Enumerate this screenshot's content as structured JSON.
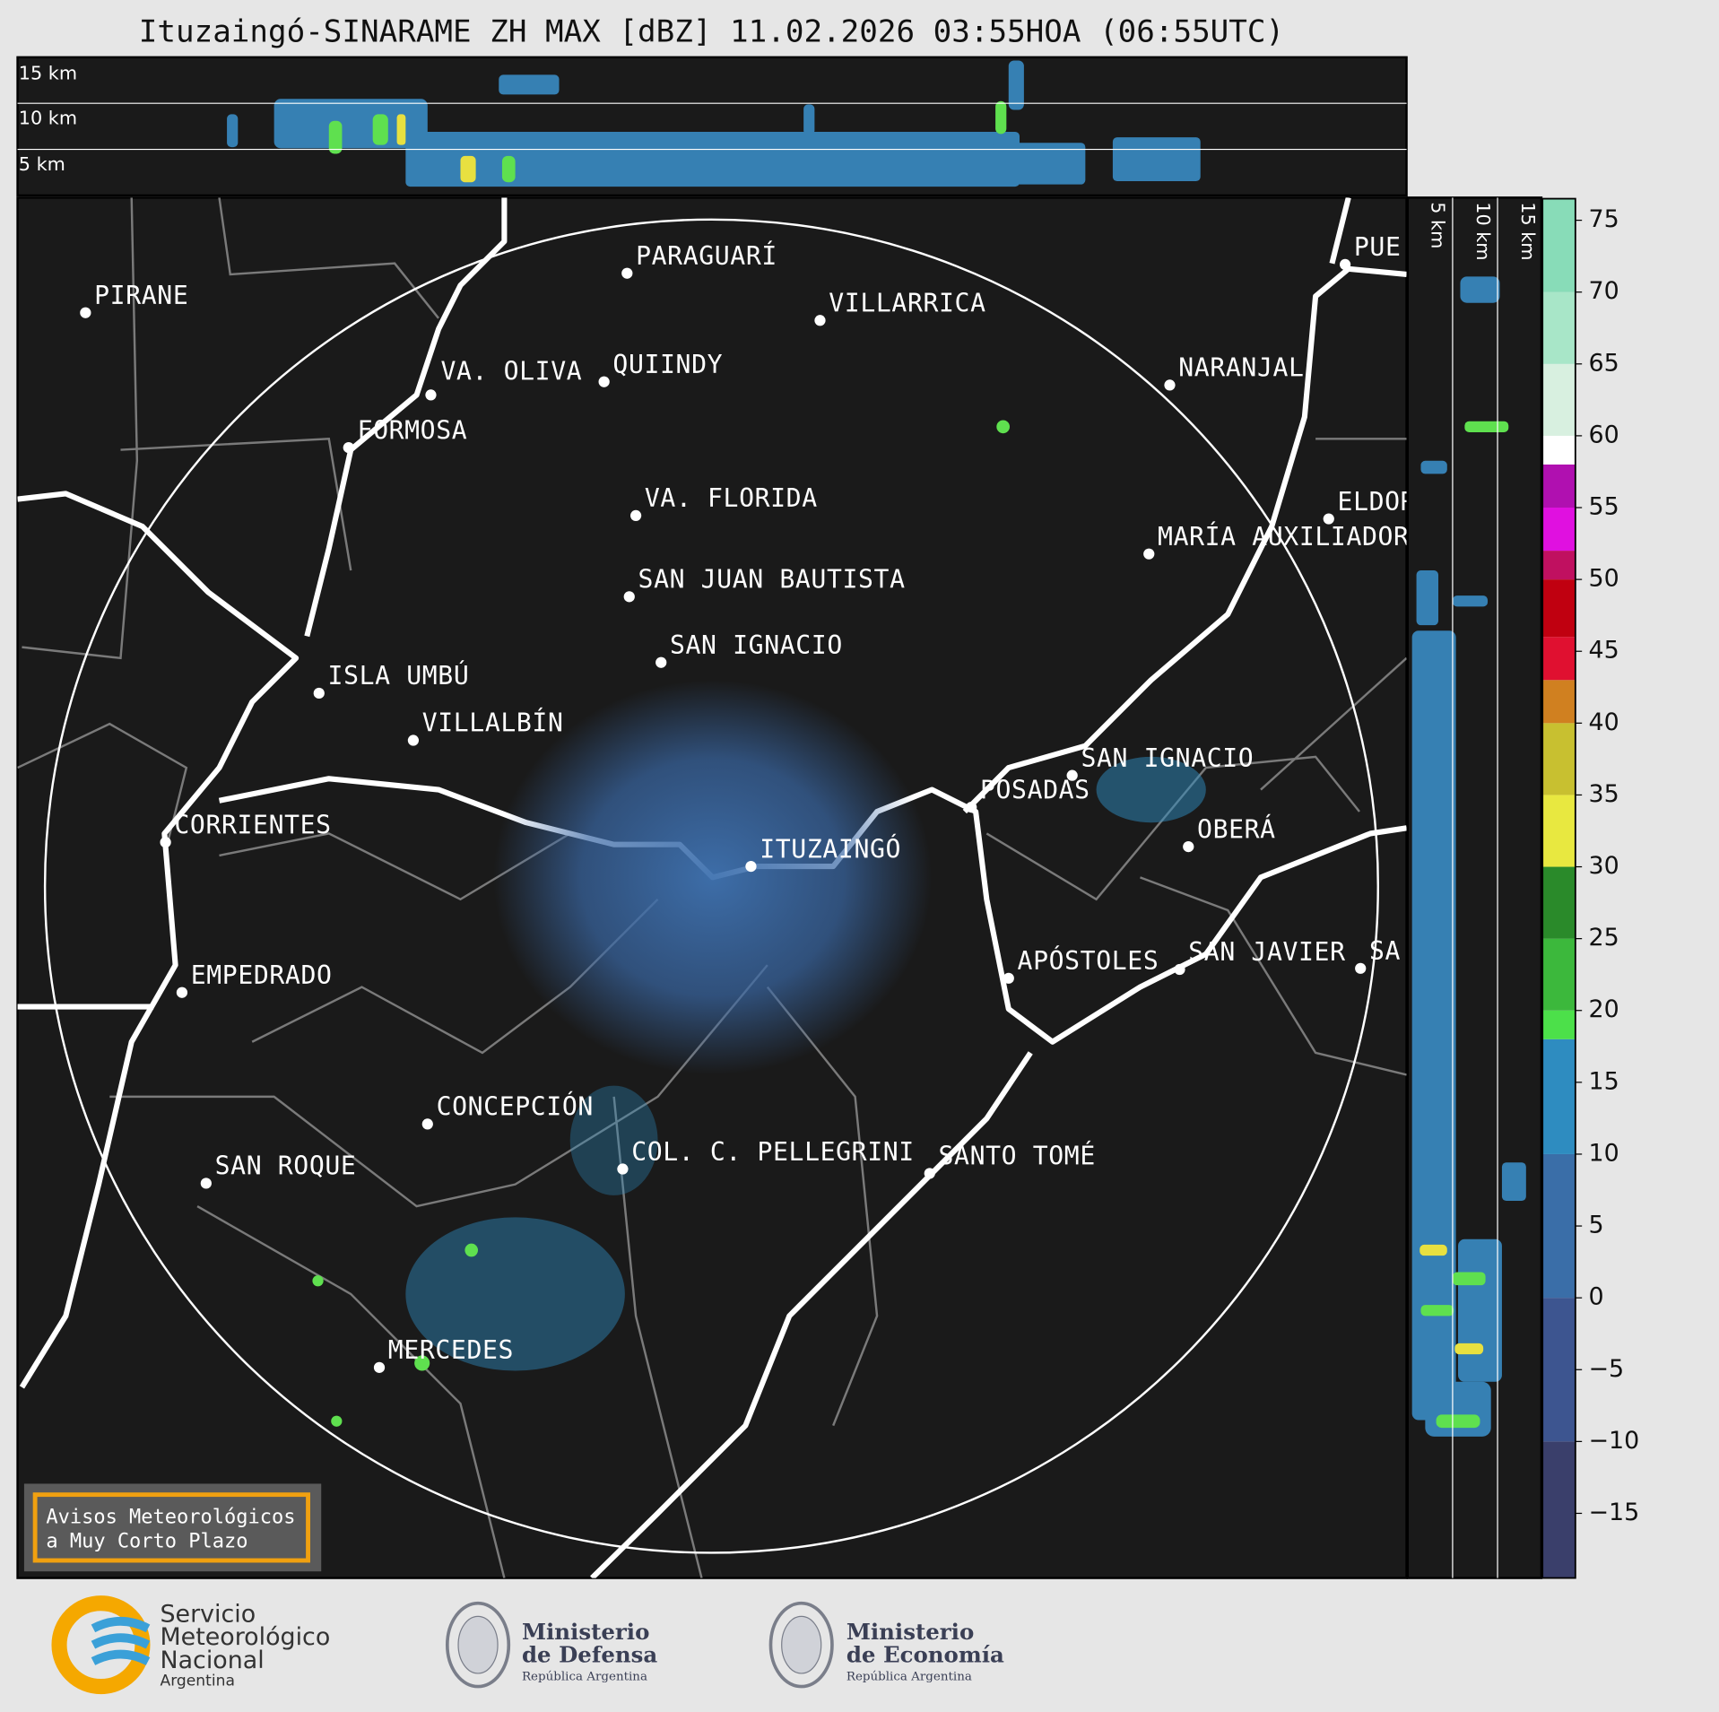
{
  "title": "Ituzaingó-SINARAME ZH MAX [dBZ] 11.02.2026 03:55HOA (06:55UTC)",
  "top_panel": {
    "height_labels": [
      "15 km",
      "10 km",
      "5 km"
    ]
  },
  "side_panel": {
    "height_labels": [
      "5 km",
      "10 km",
      "15 km"
    ]
  },
  "places": [
    "PIRANE",
    "PARAGUARÍ",
    "VILLARRICA",
    "VA. OLIVA",
    "QUIINDY",
    "FORMOSA",
    "NARANJAL",
    "VA. FLORIDA",
    "ELDORADO",
    "MARÍA AUXILIADORA",
    "SAN JUAN BAUTISTA",
    "SAN IGNACIO",
    "ISLA UMBÚ",
    "VILLALBÍN",
    "SAN IGNACIO",
    "POSADAS",
    "ITUZAINGÓ",
    "OBERÁ",
    "CORRIENTES",
    "EMPEDRADO",
    "APÓSTOLES",
    "SAN JAVIER",
    "SA",
    "CONCEPCIÓN",
    "COL. C. PELLEGRINI",
    "SANTO TOMÉ",
    "SAN ROQUE",
    "MERCEDES",
    "PUE"
  ],
  "colorbar": {
    "lim": [
      -19.5,
      76.5
    ],
    "ticks": [
      75,
      70,
      65,
      60,
      55,
      50,
      45,
      40,
      35,
      30,
      25,
      20,
      15,
      10,
      5,
      0,
      {
        "value": -5,
        "label": "−5"
      },
      {
        "value": -10,
        "label": "−10"
      },
      {
        "value": -15,
        "label": "−15"
      }
    ],
    "stops": [
      {
        "from": -19.5,
        "color": "#3a3f6b"
      },
      {
        "from": -10,
        "color": "#3d5590"
      },
      {
        "from": 0,
        "color": "#3a6ea8"
      },
      {
        "from": 10,
        "color": "#2e8cc0"
      },
      {
        "from": 18,
        "color": "#4ce04a"
      },
      {
        "from": 20,
        "color": "#3cb83c"
      },
      {
        "from": 25,
        "color": "#2a8a2a"
      },
      {
        "from": 30,
        "color": "#e8e840"
      },
      {
        "from": 35,
        "color": "#c8c030"
      },
      {
        "from": 40,
        "color": "#d08020"
      },
      {
        "from": 43,
        "color": "#e01030"
      },
      {
        "from": 46,
        "color": "#c00010"
      },
      {
        "from": 50,
        "color": "#c01060"
      },
      {
        "from": 52,
        "color": "#e010e0"
      },
      {
        "from": 55,
        "color": "#b010b0"
      },
      {
        "from": 58,
        "color": "#ffffff"
      },
      {
        "from": 60,
        "color": "#d8f0e0"
      },
      {
        "from": 65,
        "color": "#a8e6c8"
      },
      {
        "from": 70,
        "color": "#88dcb8"
      }
    ]
  },
  "notice": [
    "Avisos Meteorológicos",
    "a Muy Corto Plazo"
  ],
  "logos": {
    "smn": [
      "Servicio",
      "Meteorológico",
      "Nacional",
      "Argentina"
    ],
    "defensa": [
      "Ministerio",
      "de Defensa",
      "República Argentina"
    ],
    "economia": [
      "Ministerio",
      "de Economía",
      "República Argentina"
    ]
  }
}
